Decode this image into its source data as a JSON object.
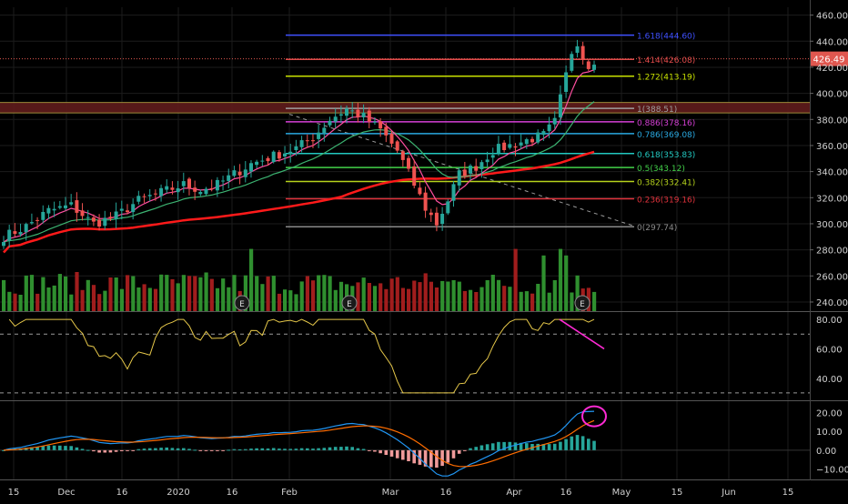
{
  "theme": {
    "background": "#000000",
    "grid": "#1c1c1c",
    "axis_text": "#d0d0d0",
    "up": "#26a69a",
    "up_body": "#f48fb1",
    "candle_up": "#26a69a",
    "candle_down": "#ef5350",
    "vol_up": "#2f8f2f",
    "vol_down": "#a11d1d",
    "ema_fast": "#ff4fa0",
    "ema_mid": "#3cb371",
    "sma_slow": "#ff1a1a",
    "rsi_line": "#e6c84a",
    "macd_line": "#2196f3",
    "signal_line": "#ff6d00",
    "hist_pos": "#26a69a",
    "hist_neg": "#ef9a9a",
    "annotation": "#ff2ad4",
    "resistance_zone": "#5c1a1a",
    "price_line": "#e0574f"
  },
  "chart_data": [
    {
      "type": "candlestick",
      "panel": "price",
      "ylim": [
        233,
        466
      ],
      "y_ticks": [
        240,
        260,
        280,
        300,
        320,
        340,
        360,
        380,
        400,
        420,
        440,
        460
      ],
      "last_price": "426.49",
      "x_ticks": [
        "15",
        "Dec",
        "16",
        "2020",
        "16",
        "Feb",
        "Mar",
        "16",
        "Apr",
        "16",
        "May",
        "15",
        "Jun",
        "15"
      ],
      "fib_levels": [
        {
          "ratio": "1.618",
          "value": 444.6,
          "label": "1.618(444.60)",
          "color": "#3f51ff"
        },
        {
          "ratio": "1.414",
          "value": 426.08,
          "label": "1.414(426.08)",
          "color": "#e04a4a"
        },
        {
          "ratio": "1.272",
          "value": 413.19,
          "label": "1.272(413.19)",
          "color": "#c7e000"
        },
        {
          "ratio": "1",
          "value": 388.51,
          "label": "1(388.51)",
          "color": "#9e9e9e"
        },
        {
          "ratio": "0.886",
          "value": 378.16,
          "label": "0.886(378.16)",
          "color": "#d63fd6"
        },
        {
          "ratio": "0.786",
          "value": 369.08,
          "label": "0.786(369.08)",
          "color": "#29a8e0"
        },
        {
          "ratio": "0.618",
          "value": 353.83,
          "label": "0.618(353.83)",
          "color": "#22c8c0"
        },
        {
          "ratio": "0.5",
          "value": 343.12,
          "label": "0.5(343.12)",
          "color": "#43d14a"
        },
        {
          "ratio": "0.382",
          "value": 332.41,
          "label": "0.382(332.41)",
          "color": "#b5d21c"
        },
        {
          "ratio": "0.236",
          "value": 319.16,
          "label": "0.236(319.16)",
          "color": "#e0323b"
        },
        {
          "ratio": "0",
          "value": 297.74,
          "label": "0(297.74)",
          "color": "#8a8a8a"
        }
      ],
      "zone": {
        "low": 385,
        "high": 393
      },
      "earnings_markers": [
        "E",
        "E",
        "E"
      ],
      "close_path": [
        [
          0,
          290
        ],
        [
          8,
          298
        ],
        [
          16,
          310
        ],
        [
          24,
          314
        ],
        [
          32,
          300
        ],
        [
          40,
          306
        ],
        [
          48,
          318
        ],
        [
          56,
          324
        ],
        [
          64,
          330
        ],
        [
          70,
          326
        ],
        [
          76,
          330
        ],
        [
          82,
          338
        ],
        [
          88,
          346
        ],
        [
          96,
          352
        ],
        [
          104,
          358
        ],
        [
          110,
          366
        ],
        [
          116,
          380
        ],
        [
          122,
          388
        ],
        [
          128,
          382
        ],
        [
          134,
          372
        ],
        [
          140,
          356
        ],
        [
          146,
          330
        ],
        [
          150,
          312
        ],
        [
          154,
          300
        ],
        [
          158,
          318
        ],
        [
          162,
          338
        ],
        [
          168,
          344
        ],
        [
          174,
          356
        ],
        [
          180,
          360
        ],
        [
          186,
          364
        ],
        [
          192,
          368
        ],
        [
          196,
          378
        ],
        [
          198,
          396
        ],
        [
          200,
          414
        ],
        [
          202,
          432
        ],
        [
          204,
          440
        ],
        [
          206,
          428
        ],
        [
          208,
          422
        ],
        [
          210,
          426
        ]
      ]
    },
    {
      "type": "line",
      "panel": "rsi",
      "ylim": [
        25,
        85
      ],
      "y_ticks": [
        40,
        60,
        80
      ],
      "tick_labels": [
        "40.00",
        "60.00",
        "80.00"
      ],
      "bands": [
        30,
        70
      ]
    },
    {
      "type": "line",
      "panel": "macd",
      "ylim": [
        -16,
        26
      ],
      "y_ticks": [
        -10,
        0,
        10,
        20
      ],
      "tick_labels": [
        "−10.00",
        "0.00",
        "10.00",
        "20.00"
      ]
    }
  ]
}
